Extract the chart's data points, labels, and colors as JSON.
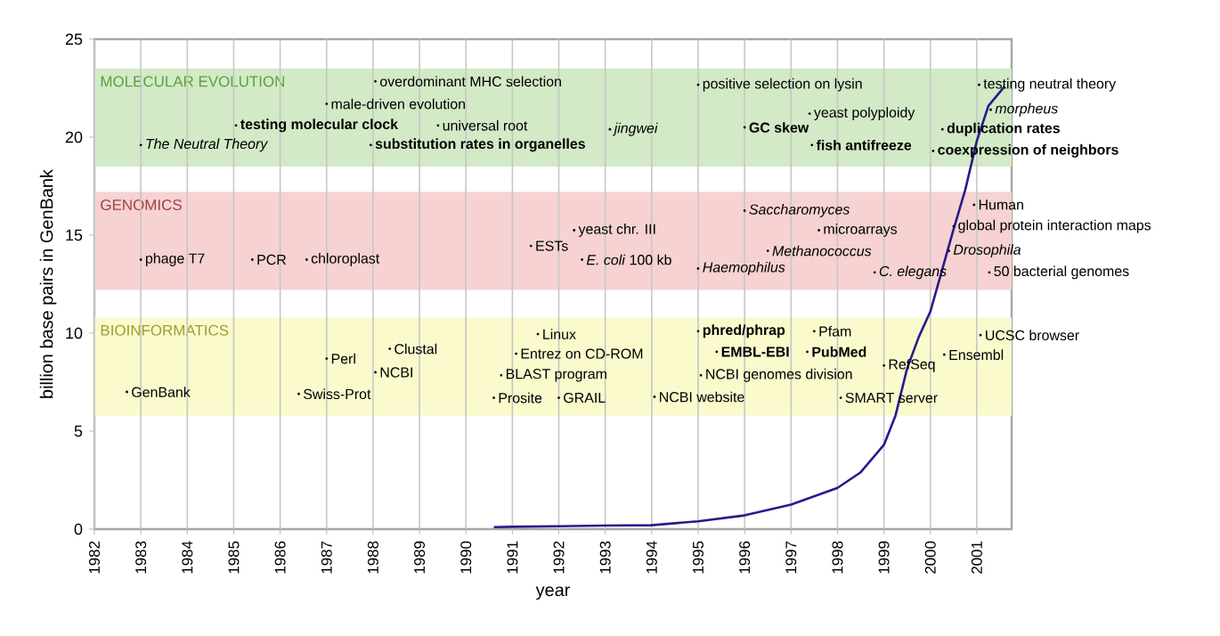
{
  "chart_data": {
    "type": "line",
    "xlabel": "year",
    "ylabel": "billion base pairs in GenBank",
    "xlim": [
      1982,
      2001.75
    ],
    "ylim": [
      0,
      25
    ],
    "xticks": [
      1982,
      1983,
      1984,
      1985,
      1986,
      1987,
      1988,
      1989,
      1990,
      1991,
      1992,
      1993,
      1994,
      1995,
      1996,
      1997,
      1998,
      1999,
      2000,
      2001
    ],
    "yticks": [
      0,
      5,
      10,
      15,
      20,
      25
    ],
    "grid": "x",
    "marker": "none",
    "line_style": "solid",
    "series": [
      {
        "color": "#2a1a8c",
        "x": [
          1990.6,
          1991,
          1992,
          1993,
          1994,
          1995,
          1996,
          1997,
          1998,
          1998.5,
          1999,
          1999.25,
          1999.5,
          1999.75,
          2000,
          2000.25,
          2000.5,
          2000.75,
          2001,
          2001.25,
          2001.6
        ],
        "values": [
          0.1,
          0.12,
          0.15,
          0.18,
          0.2,
          0.4,
          0.7,
          1.25,
          2.1,
          2.9,
          4.3,
          5.8,
          8.2,
          9.8,
          11.1,
          13.2,
          15.3,
          17.3,
          19.8,
          21.6,
          22.6
        ]
      }
    ],
    "bands": [
      {
        "axis": "y",
        "from": 18.5,
        "to": 23.5,
        "label": "MOLECULAR EVOLUTION",
        "color": "#d2eac6"
      },
      {
        "axis": "y",
        "from": 12.2,
        "to": 17.2,
        "label": "GENOMICS",
        "color": "#f6d2d2"
      },
      {
        "axis": "y",
        "from": 5.8,
        "to": 10.8,
        "label": "BIOINFORMATICS",
        "color": "#fafacd"
      }
    ],
    "annotations": [
      {
        "text": "overdominant MHC selection",
        "x": 1988.05,
        "y": 22.85
      },
      {
        "text": "male-driven evolution",
        "x": 1987.0,
        "y": 21.7
      },
      {
        "text": "**testing molecular clock**",
        "x": 1985.05,
        "y": 20.6
      },
      {
        "text": "universal root",
        "x": 1989.4,
        "y": 20.6
      },
      {
        "text": "*The Neutral Theory*",
        "x": 1983.0,
        "y": 19.6
      },
      {
        "text": "**substitution rates in organelles**",
        "x": 1987.95,
        "y": 19.6
      },
      {
        "text": "*jingwei*",
        "x": 1993.1,
        "y": 20.4
      },
      {
        "text": "positive selection on lysin",
        "x": 1995.0,
        "y": 22.67
      },
      {
        "text": "yeast polyploidy",
        "x": 1997.4,
        "y": 21.2
      },
      {
        "text": "**GC skew**",
        "x": 1996.0,
        "y": 20.5
      },
      {
        "text": "**fish antifreeze**",
        "x": 1997.45,
        "y": 19.6
      },
      {
        "text": "**duplication rates**",
        "x": 2000.26,
        "y": 20.4
      },
      {
        "text": "**coexpression of neighbors**",
        "x": 2000.06,
        "y": 19.3
      },
      {
        "text": "testing neutral theory",
        "x": 2001.05,
        "y": 22.67
      },
      {
        "text": "*morpheus*",
        "x": 2001.3,
        "y": 21.4
      },
      {
        "text": "phage T7",
        "x": 1983.0,
        "y": 13.75
      },
      {
        "text": "PCR",
        "x": 1985.4,
        "y": 13.75
      },
      {
        "text": "chloroplast",
        "x": 1986.57,
        "y": 13.75
      },
      {
        "text": "ESTs",
        "x": 1991.4,
        "y": 14.45
      },
      {
        "text": "yeast chr. III",
        "x": 1992.33,
        "y": 15.25
      },
      {
        "text": "*E. coli* 100 kb",
        "x": 1992.5,
        "y": 13.75
      },
      {
        "text": "*Saccharomyces*",
        "x": 1996.0,
        "y": 16.25
      },
      {
        "text": "microarrays",
        "x": 1997.6,
        "y": 15.25
      },
      {
        "text": "*Methanococcus*",
        "x": 1996.5,
        "y": 14.2
      },
      {
        "text": "*Haemophilus*",
        "x": 1995.0,
        "y": 13.3
      },
      {
        "text": "*C. elegans*",
        "x": 1998.8,
        "y": 13.1
      },
      {
        "text": "Human",
        "x": 2000.94,
        "y": 16.55
      },
      {
        "text": "global protein interaction maps",
        "x": 2000.5,
        "y": 15.45
      },
      {
        "text": "*Drosophila*",
        "x": 2000.4,
        "y": 14.2
      },
      {
        "text": "50 bacterial genomes",
        "x": 2001.27,
        "y": 13.1
      },
      {
        "text": "GenBank",
        "x": 1982.7,
        "y": 7.0
      },
      {
        "text": "Swiss-Prot",
        "x": 1986.4,
        "y": 6.9
      },
      {
        "text": "Perl",
        "x": 1987.0,
        "y": 8.7
      },
      {
        "text": "NCBI",
        "x": 1988.05,
        "y": 8.0
      },
      {
        "text": "Clustal",
        "x": 1988.36,
        "y": 9.2
      },
      {
        "text": "Linux",
        "x": 1991.55,
        "y": 9.95
      },
      {
        "text": "Entrez on CD-ROM",
        "x": 1991.08,
        "y": 8.95
      },
      {
        "text": "BLAST program",
        "x": 1990.76,
        "y": 7.85
      },
      {
        "text": "Prosite",
        "x": 1990.6,
        "y": 6.7
      },
      {
        "text": "GRAIL",
        "x": 1992.0,
        "y": 6.7
      },
      {
        "text": "NCBI website",
        "x": 1994.06,
        "y": 6.75
      },
      {
        "text": "**phred/phrap**",
        "x": 1995.0,
        "y": 10.1
      },
      {
        "text": "Pfam",
        "x": 1997.5,
        "y": 10.1
      },
      {
        "text": "**EMBL-EBI**",
        "x": 1995.4,
        "y": 9.05
      },
      {
        "text": "**PubMed**",
        "x": 1997.35,
        "y": 9.05
      },
      {
        "text": "NCBI genomes division",
        "x": 1995.06,
        "y": 7.85
      },
      {
        "text": "RefSeq",
        "x": 1999.0,
        "y": 8.35
      },
      {
        "text": "Ensembl",
        "x": 2000.3,
        "y": 8.9
      },
      {
        "text": "UCSC browser",
        "x": 2001.08,
        "y": 9.9
      },
      {
        "text": "SMART server",
        "x": 1998.07,
        "y": 6.7
      }
    ]
  }
}
